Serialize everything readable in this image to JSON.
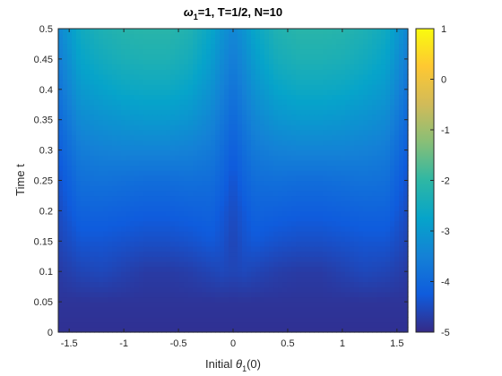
{
  "chart_data": {
    "type": "heatmap",
    "title": "ω₁=1, T=1/2, N=10",
    "title_parts": {
      "omega": "ω",
      "sub1": "1",
      "rest": "=1, T=1/2, N=10"
    },
    "xlabel": "Initial θ₁(0)",
    "xlabel_parts": {
      "pre": "Initial ",
      "theta": "θ",
      "sub1": "1",
      "post": "(0)"
    },
    "ylabel": "Time t",
    "xlim": [
      -1.6,
      1.6
    ],
    "ylim": [
      0,
      0.5
    ],
    "xticks": [
      -1.5,
      -1,
      -0.5,
      0,
      0.5,
      1,
      1.5
    ],
    "xtick_labels": [
      "-1.5",
      "-1",
      "-0.5",
      "0",
      "0.5",
      "1",
      "1.5"
    ],
    "yticks": [
      0,
      0.05,
      0.1,
      0.15,
      0.2,
      0.25,
      0.3,
      0.35,
      0.4,
      0.45,
      0.5
    ],
    "ytick_labels": [
      "0",
      "0.05",
      "0.1",
      "0.15",
      "0.2",
      "0.25",
      "0.3",
      "0.35",
      "0.4",
      "0.45",
      "0.5"
    ],
    "colorbar": {
      "colormap": "parula",
      "clim": [
        -5,
        1
      ],
      "ticks": [
        1,
        0,
        -1,
        -2,
        -3,
        -4,
        -5
      ],
      "tick_labels": [
        "1",
        "0",
        "-1",
        "-2",
        "-3",
        "-4",
        "-5"
      ],
      "colors": [
        "#352a87",
        "#0f5cdd",
        "#1481d6",
        "#06a4ca",
        "#2eb7a4",
        "#87bf77",
        "#d1bb59",
        "#fec832",
        "#f9fb0e"
      ]
    },
    "grid": false,
    "x": [
      -1.6,
      -1.4,
      -1.2,
      -1.0,
      -0.8,
      -0.6,
      -0.4,
      -0.2,
      -0.1,
      0.0,
      0.1,
      0.2,
      0.4,
      0.6,
      0.8,
      1.0,
      1.2,
      1.4,
      1.6
    ],
    "y": [
      0,
      0.05,
      0.1,
      0.15,
      0.2,
      0.25,
      0.3,
      0.35,
      0.4,
      0.45,
      0.5
    ],
    "z": [
      [
        -4.9,
        -4.9,
        -4.9,
        -4.9,
        -4.9,
        -4.9,
        -4.9,
        -4.9,
        -4.9,
        -4.9,
        -4.9,
        -4.9,
        -4.9,
        -4.9,
        -4.9,
        -4.9,
        -4.9,
        -4.9,
        -4.9
      ],
      [
        -4.85,
        -4.85,
        -4.85,
        -4.85,
        -4.85,
        -4.85,
        -4.85,
        -4.85,
        -4.85,
        -4.85,
        -4.85,
        -4.85,
        -4.85,
        -4.85,
        -4.85,
        -4.85,
        -4.85,
        -4.85,
        -4.85
      ],
      [
        -4.75,
        -4.6,
        -4.55,
        -4.65,
        -4.75,
        -4.75,
        -4.7,
        -4.6,
        -4.55,
        -4.6,
        -4.55,
        -4.6,
        -4.7,
        -4.75,
        -4.75,
        -4.65,
        -4.55,
        -4.6,
        -4.75
      ],
      [
        -4.6,
        -4.35,
        -4.35,
        -4.4,
        -4.45,
        -4.45,
        -4.4,
        -4.3,
        -4.4,
        -4.6,
        -4.4,
        -4.3,
        -4.4,
        -4.45,
        -4.45,
        -4.4,
        -4.35,
        -4.35,
        -4.6
      ],
      [
        -4.5,
        -4.1,
        -4.1,
        -4.15,
        -4.2,
        -4.2,
        -4.15,
        -4.1,
        -4.3,
        -4.5,
        -4.3,
        -4.1,
        -4.15,
        -4.2,
        -4.2,
        -4.15,
        -4.1,
        -4.1,
        -4.5
      ],
      [
        -4.4,
        -3.85,
        -3.8,
        -3.85,
        -3.9,
        -3.9,
        -3.85,
        -3.9,
        -4.1,
        -4.4,
        -4.1,
        -3.9,
        -3.85,
        -3.9,
        -3.9,
        -3.85,
        -3.8,
        -3.85,
        -4.4
      ],
      [
        -4.2,
        -3.6,
        -3.5,
        -3.45,
        -3.45,
        -3.45,
        -3.5,
        -3.65,
        -3.9,
        -4.2,
        -3.9,
        -3.65,
        -3.5,
        -3.45,
        -3.45,
        -3.45,
        -3.5,
        -3.6,
        -4.2
      ],
      [
        -4.0,
        -3.3,
        -3.15,
        -3.05,
        -3.0,
        -3.0,
        -3.1,
        -3.4,
        -3.7,
        -4.0,
        -3.7,
        -3.4,
        -3.1,
        -3.0,
        -3.0,
        -3.05,
        -3.15,
        -3.3,
        -4.0
      ],
      [
        -3.8,
        -3.0,
        -2.8,
        -2.65,
        -2.6,
        -2.6,
        -2.75,
        -3.15,
        -3.5,
        -3.8,
        -3.5,
        -3.15,
        -2.75,
        -2.6,
        -2.6,
        -2.65,
        -2.8,
        -3.0,
        -3.8
      ],
      [
        -3.6,
        -2.75,
        -2.5,
        -2.35,
        -2.3,
        -2.3,
        -2.45,
        -2.9,
        -3.3,
        -3.6,
        -3.3,
        -2.9,
        -2.45,
        -2.3,
        -2.3,
        -2.35,
        -2.5,
        -2.75,
        -3.6
      ],
      [
        -3.4,
        -2.55,
        -2.3,
        -2.15,
        -2.1,
        -2.1,
        -2.25,
        -2.7,
        -3.1,
        -3.4,
        -3.1,
        -2.7,
        -2.25,
        -2.1,
        -2.1,
        -2.15,
        -2.3,
        -2.55,
        -3.4
      ]
    ]
  }
}
